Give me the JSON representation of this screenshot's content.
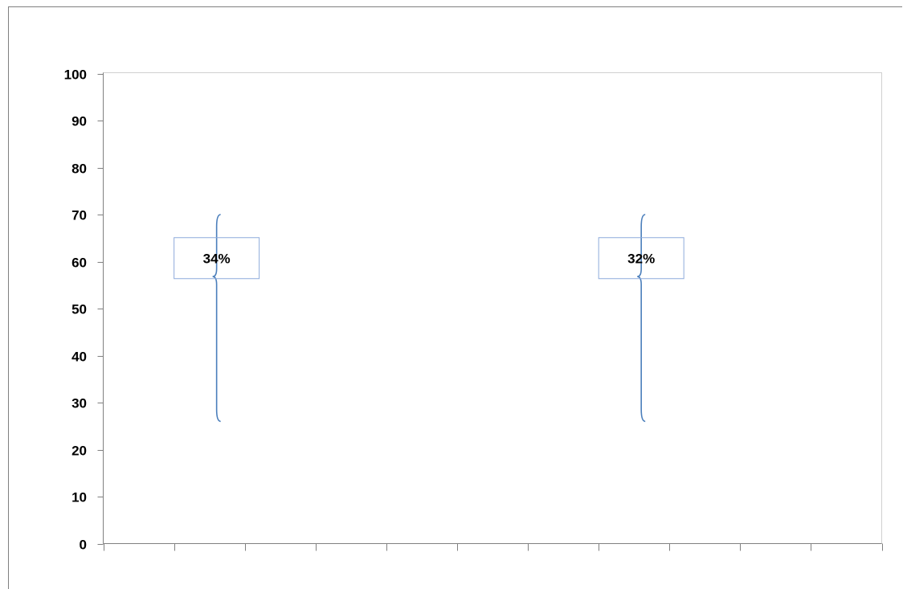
{
  "chart_data": {
    "type": "bar",
    "title": "",
    "xlabel": "",
    "ylabel": "",
    "ylim": [
      0,
      100
    ],
    "y_ticks": [
      "0",
      "10",
      "20",
      "30",
      "40",
      "50",
      "60",
      "70",
      "80",
      "90",
      "100"
    ],
    "x_category_count": 11,
    "grid": false,
    "annotations": [
      {
        "label": "34%",
        "category_index": 1,
        "brace_range": [
          26,
          70
        ]
      },
      {
        "label": "32%",
        "category_index": 7,
        "brace_range": [
          26,
          70
        ]
      }
    ]
  },
  "colors": {
    "axis": "#808080",
    "border": "#808080",
    "brace": "#4a7ebb",
    "label_box": "#8eaadb",
    "text": "#000000"
  }
}
